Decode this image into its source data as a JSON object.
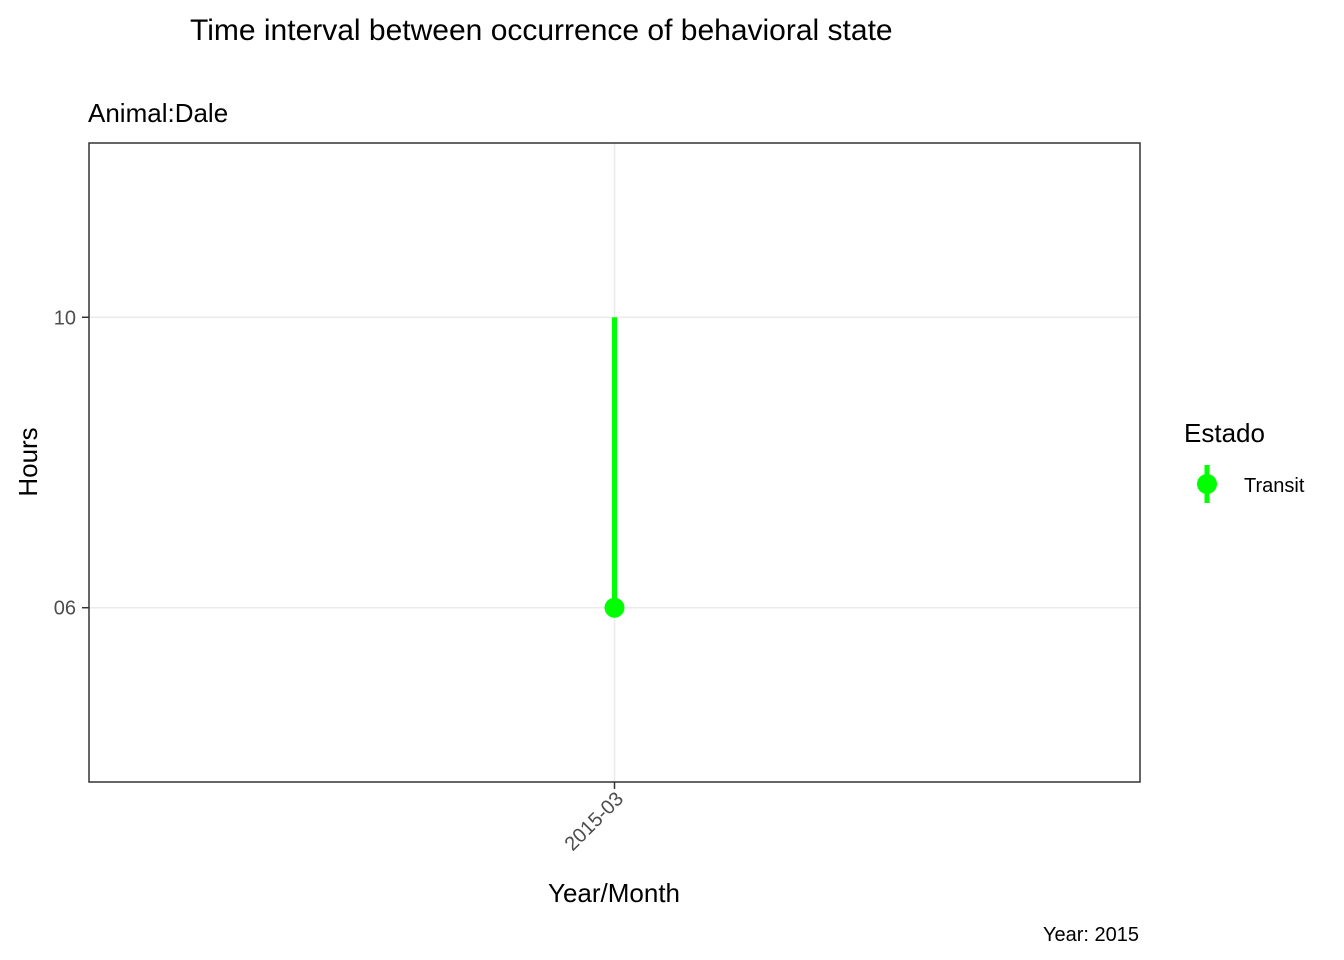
{
  "chart_data": {
    "type": "line",
    "title": "Time interval between occurrence of behavioral state",
    "subtitle": "Animal:Dale",
    "caption": "Year: 2015",
    "xlabel": "Year/Month",
    "ylabel": "Hours",
    "categories": [
      "2015-03"
    ],
    "y_ticks": [
      {
        "value": 10,
        "label": "10"
      },
      {
        "value": 6,
        "label": "06"
      }
    ],
    "ylim": [
      3.6,
      12.4
    ],
    "grid": true,
    "legend": {
      "title": "Estado",
      "position": "right",
      "entries": [
        "Transit"
      ]
    },
    "series": [
      {
        "name": "Transit",
        "color": "#00ff00",
        "points": [
          {
            "x": "2015-03",
            "start": 6,
            "end": 10
          }
        ]
      }
    ]
  }
}
